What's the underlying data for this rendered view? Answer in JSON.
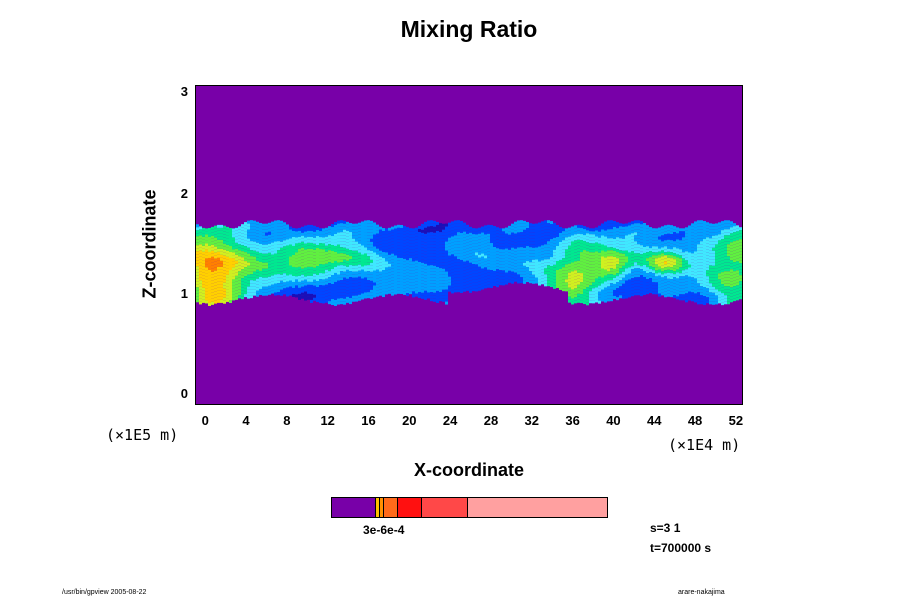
{
  "chart_data": {
    "type": "heatmap",
    "title": "Mixing Ratio",
    "xlabel": "X-coordinate",
    "ylabel": "Z-coordinate",
    "x_unit": "(×1E4 m)",
    "y_unit": "(×1E5 m)",
    "x_ticks": [
      "0",
      "4",
      "8",
      "12",
      "16",
      "20",
      "24",
      "28",
      "32",
      "36",
      "40",
      "44",
      "48",
      "52"
    ],
    "y_ticks": [
      "3",
      "2",
      "1",
      "0"
    ],
    "xlim": [
      -1,
      52.5
    ],
    "ylim": [
      -0.1,
      3.05
    ],
    "background_color": "#7800a8",
    "layer": {
      "z_bottom": 0.95,
      "z_top": 1.7
    },
    "colorbar": {
      "colors": [
        "#7800a8",
        "#ffc000",
        "#ff9000",
        "#ff6a1a",
        "#ff1010",
        "#ff4848",
        "#ffa0a0"
      ],
      "fractions": [
        0.16,
        0.01,
        0.012,
        0.05,
        0.085,
        0.165,
        0.518
      ],
      "label": "3e-6e-4"
    }
  },
  "info": {
    "s": "s=3 1",
    "t": "t=700000 s"
  },
  "footer": {
    "left": "/usr/bin/gpview 2005-08-22",
    "right": "arare-nakajima"
  }
}
